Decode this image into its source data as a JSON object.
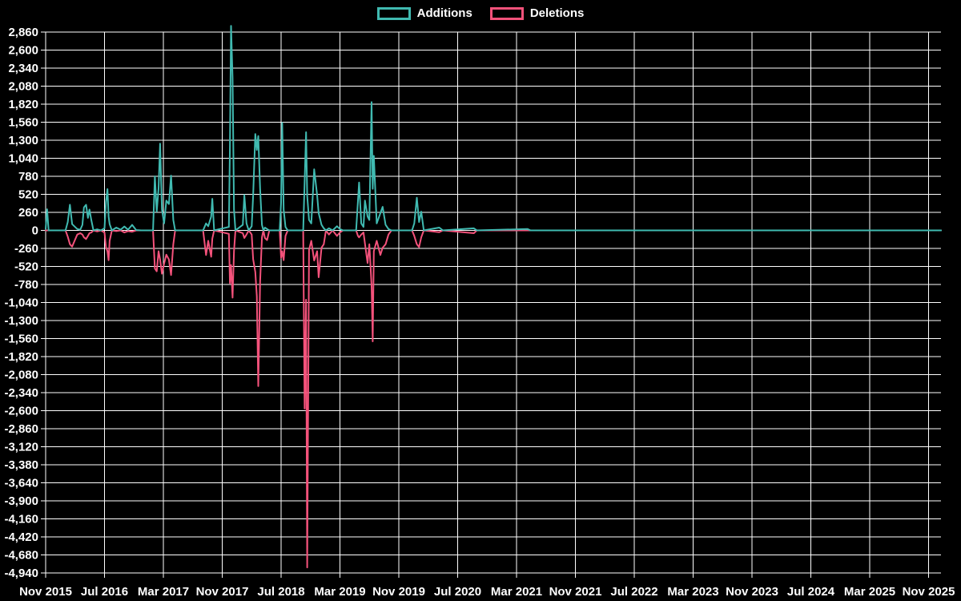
{
  "chart_data": {
    "type": "line",
    "title": "",
    "x_unit": "months since Nov 2015",
    "x_tick_labels": [
      "Nov 2015",
      "Jul 2016",
      "Mar 2017",
      "Nov 2017",
      "Jul 2018",
      "Mar 2019",
      "Nov 2019",
      "Jul 2020",
      "Mar 2021",
      "Nov 2021",
      "Jul 2022",
      "Mar 2023",
      "Nov 2023",
      "Jul 2024",
      "Mar 2025",
      "Nov 2025"
    ],
    "x_months_per_tick": 8,
    "ylim": [
      -4940,
      2860
    ],
    "y_step": 260,
    "grid": true,
    "legend_position": "top",
    "style": {
      "background": "#000000",
      "grid_color": "#ffffff",
      "text_color": "#ffffff",
      "additions_color": "#40bab1",
      "deletions_color": "#f4527b"
    },
    "points_format": [
      "t_months",
      "additions",
      "deletions"
    ],
    "points": [
      [
        0,
        20,
        0
      ],
      [
        0.2,
        305,
        0
      ],
      [
        0.4,
        0,
        0
      ],
      [
        2.7,
        0,
        0
      ],
      [
        3.0,
        120,
        -90
      ],
      [
        3.3,
        370,
        -200
      ],
      [
        3.6,
        90,
        -235
      ],
      [
        3.9,
        60,
        -160
      ],
      [
        4.3,
        20,
        -60
      ],
      [
        4.7,
        10,
        -40
      ],
      [
        5.0,
        80,
        -60
      ],
      [
        5.2,
        330,
        -100
      ],
      [
        5.5,
        370,
        -125
      ],
      [
        5.75,
        180,
        -80
      ],
      [
        5.95,
        300,
        -40
      ],
      [
        6.2,
        150,
        -30
      ],
      [
        6.5,
        0,
        0
      ],
      [
        7.0,
        15,
        -15
      ],
      [
        7.5,
        0,
        0
      ],
      [
        8.0,
        30,
        -30
      ],
      [
        8.2,
        410,
        -240
      ],
      [
        8.4,
        595,
        -300
      ],
      [
        8.55,
        200,
        -430
      ],
      [
        8.7,
        90,
        -150
      ],
      [
        9.0,
        0,
        0
      ],
      [
        9.6,
        40,
        -10
      ],
      [
        10.2,
        10,
        0
      ],
      [
        10.7,
        55,
        -30
      ],
      [
        11.2,
        10,
        -10
      ],
      [
        11.75,
        80,
        -20
      ],
      [
        12.3,
        5,
        0
      ],
      [
        13.0,
        0,
        0
      ],
      [
        14.6,
        0,
        0
      ],
      [
        14.85,
        780,
        -550
      ],
      [
        15.1,
        270,
        -590
      ],
      [
        15.35,
        600,
        -300
      ],
      [
        15.55,
        1250,
        -420
      ],
      [
        15.8,
        300,
        -625
      ],
      [
        16.1,
        100,
        -480
      ],
      [
        16.4,
        430,
        -350
      ],
      [
        16.75,
        380,
        -420
      ],
      [
        17.05,
        790,
        -645
      ],
      [
        17.35,
        150,
        -200
      ],
      [
        17.6,
        0,
        0
      ],
      [
        21.4,
        0,
        0
      ],
      [
        21.8,
        100,
        -355
      ],
      [
        22.1,
        60,
        -150
      ],
      [
        22.5,
        200,
        -380
      ],
      [
        22.65,
        455,
        -120
      ],
      [
        22.9,
        0,
        0
      ],
      [
        24.9,
        50,
        -50
      ],
      [
        25.05,
        1200,
        -760
      ],
      [
        25.2,
        2950,
        -500
      ],
      [
        25.4,
        2200,
        -970
      ],
      [
        25.6,
        300,
        -300
      ],
      [
        25.8,
        0,
        0
      ],
      [
        26.8,
        80,
        -40
      ],
      [
        27.0,
        510,
        -110
      ],
      [
        27.3,
        100,
        -60
      ],
      [
        27.6,
        0,
        0
      ],
      [
        28.0,
        60,
        -60
      ],
      [
        28.2,
        500,
        -415
      ],
      [
        28.5,
        1390,
        -600
      ],
      [
        28.7,
        1160,
        -950
      ],
      [
        28.9,
        1360,
        -2245
      ],
      [
        29.15,
        600,
        -740
      ],
      [
        29.4,
        80,
        -100
      ],
      [
        29.6,
        0,
        0
      ],
      [
        29.8,
        40,
        -110
      ],
      [
        30.1,
        20,
        -140
      ],
      [
        30.4,
        0,
        0
      ],
      [
        31.8,
        0,
        0
      ],
      [
        32.0,
        400,
        -395
      ],
      [
        32.15,
        1550,
        -300
      ],
      [
        32.35,
        300,
        -430
      ],
      [
        32.6,
        50,
        -80
      ],
      [
        32.9,
        0,
        0
      ],
      [
        35.0,
        0,
        0
      ],
      [
        35.2,
        700,
        -2570
      ],
      [
        35.4,
        1415,
        -1000
      ],
      [
        35.55,
        500,
        -4860
      ],
      [
        35.8,
        150,
        -280
      ],
      [
        36.1,
        100,
        -150
      ],
      [
        36.5,
        880,
        -435
      ],
      [
        36.9,
        510,
        -300
      ],
      [
        37.1,
        250,
        -676
      ],
      [
        37.5,
        80,
        -250
      ],
      [
        37.8,
        30,
        -200
      ],
      [
        38.1,
        0,
        0
      ],
      [
        38.5,
        30,
        -60
      ],
      [
        39.0,
        0,
        0
      ],
      [
        39.6,
        60,
        -80
      ],
      [
        40.0,
        20,
        -30
      ],
      [
        40.4,
        0,
        0
      ],
      [
        42.2,
        0,
        0
      ],
      [
        42.45,
        430,
        -80
      ],
      [
        42.6,
        690,
        -100
      ],
      [
        42.9,
        100,
        -60
      ],
      [
        43.2,
        50,
        -30
      ],
      [
        43.4,
        430,
        -190
      ],
      [
        43.75,
        200,
        -470
      ],
      [
        44.0,
        150,
        -200
      ],
      [
        44.3,
        1850,
        -800
      ],
      [
        44.45,
        600,
        -1600
      ],
      [
        44.6,
        1075,
        -300
      ],
      [
        45.0,
        100,
        -150
      ],
      [
        45.5,
        250,
        -355
      ],
      [
        45.8,
        340,
        -250
      ],
      [
        46.2,
        80,
        -200
      ],
      [
        46.6,
        20,
        -60
      ],
      [
        47.0,
        0,
        0
      ],
      [
        49.8,
        0,
        0
      ],
      [
        50.1,
        100,
        -80
      ],
      [
        50.45,
        470,
        -200
      ],
      [
        50.75,
        120,
        -240
      ],
      [
        51.05,
        270,
        -100
      ],
      [
        51.4,
        0,
        0
      ],
      [
        53.5,
        40,
        -25
      ],
      [
        54.0,
        0,
        0
      ],
      [
        58.2,
        30,
        -40
      ],
      [
        58.6,
        0,
        0
      ],
      [
        65.5,
        20,
        0
      ],
      [
        65.9,
        0,
        0
      ],
      [
        121.7,
        0,
        0
      ]
    ],
    "series": [
      {
        "name": "Additions",
        "color": "#40bab1"
      },
      {
        "name": "Deletions",
        "color": "#f4527b"
      }
    ]
  }
}
